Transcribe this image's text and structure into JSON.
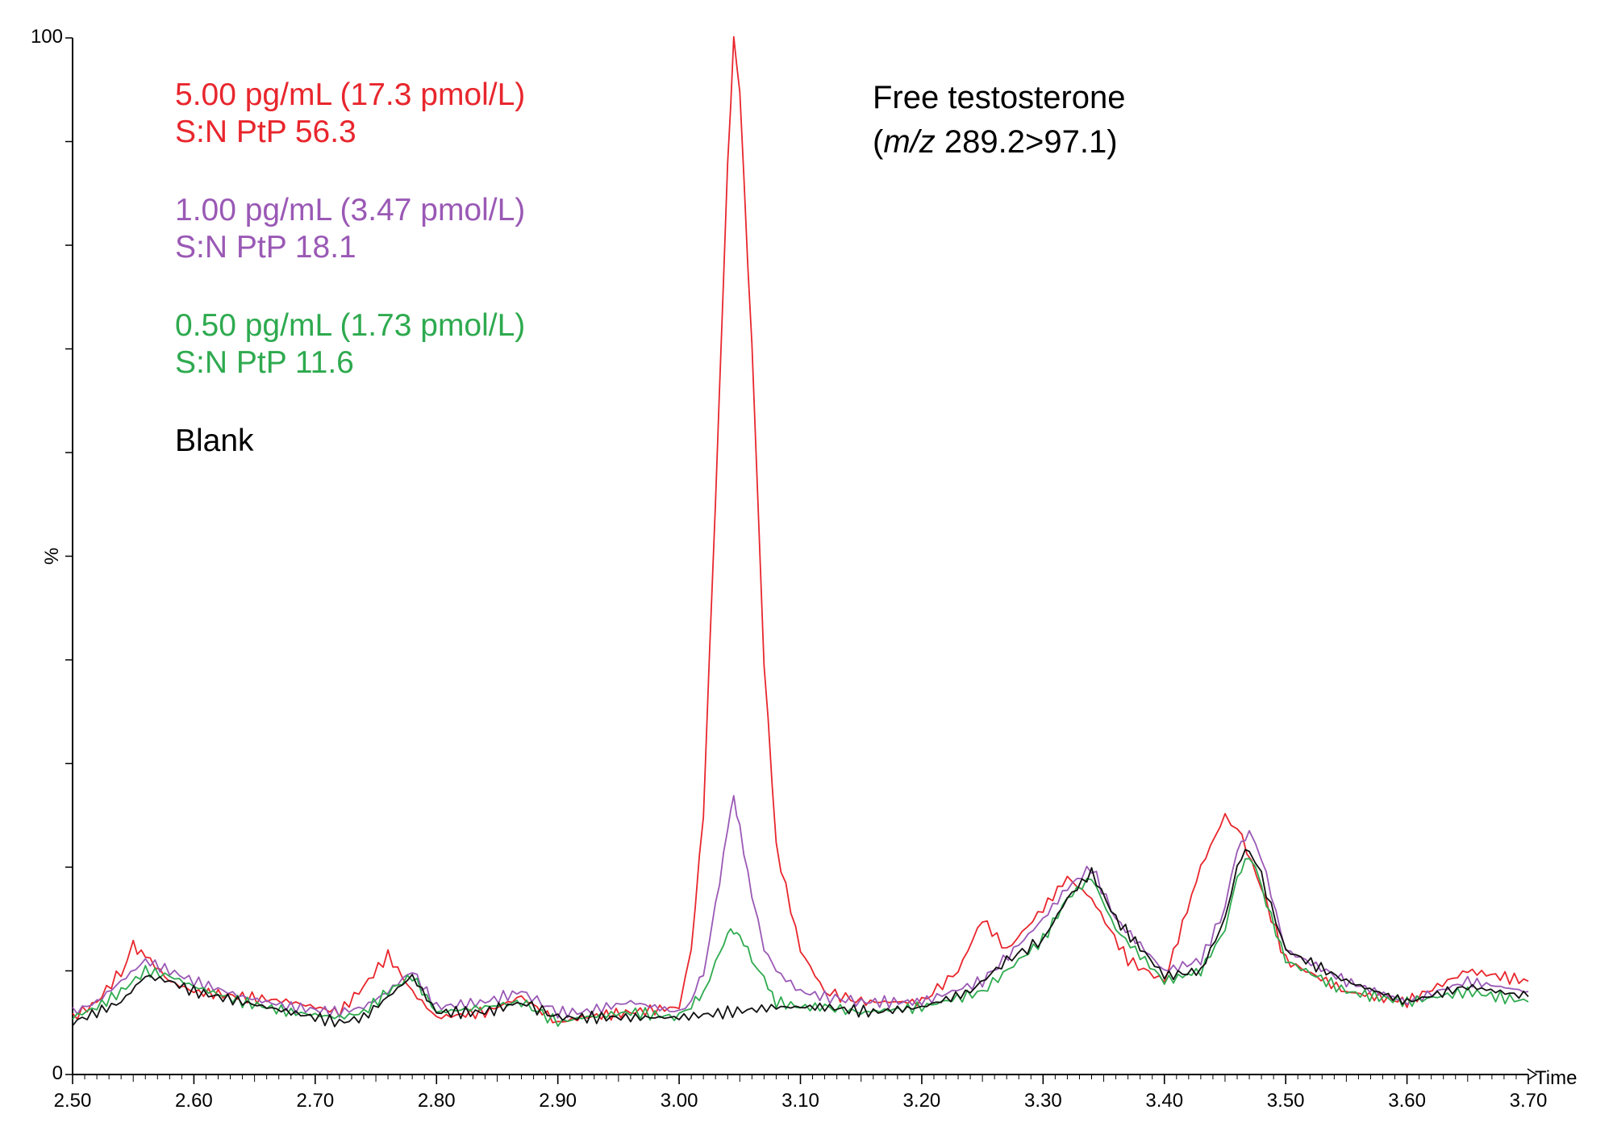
{
  "chart_data": {
    "type": "line",
    "title": "Free testosterone",
    "subtitle_prefix": "(",
    "subtitle_italic": "m/z",
    "subtitle_rest": " 289.2>97.1)",
    "xlabel": "Time",
    "ylabel": "%",
    "xlim": [
      2.5,
      3.7
    ],
    "ylim": [
      0,
      100
    ],
    "y_tick_labels": [
      "0",
      "100"
    ],
    "x_tick_labels": [
      "2.50",
      "2.60",
      "2.70",
      "2.80",
      "2.90",
      "3.00",
      "3.10",
      "3.20",
      "3.30",
      "3.40",
      "3.50",
      "3.60",
      "3.70"
    ],
    "grid": false,
    "annotations": [
      {
        "line1": "5.00 pg/mL (17.3 pmol/L)",
        "line2": "S:N PtP 56.3",
        "color": "#e8262d"
      },
      {
        "line1": "1.00 pg/mL (3.47 pmol/L)",
        "line2": "S:N PtP 18.1",
        "color": "#9a59b5"
      },
      {
        "line1": "0.50 pg/mL (1.73 pmol/L)",
        "line2": "S:N PtP 11.6",
        "color": "#2eaa4f"
      },
      {
        "line1": "Blank",
        "line2": "",
        "color": "#000000"
      }
    ],
    "series": [
      {
        "name": "5.00 pg/mL",
        "color": "#e8262d",
        "x": [
          2.5,
          2.52,
          2.54,
          2.55,
          2.56,
          2.58,
          2.6,
          2.64,
          2.68,
          2.72,
          2.74,
          2.76,
          2.78,
          2.8,
          2.84,
          2.87,
          2.9,
          2.92,
          2.96,
          3.0,
          3.01,
          3.02,
          3.03,
          3.04,
          3.045,
          3.05,
          3.06,
          3.07,
          3.08,
          3.1,
          3.12,
          3.15,
          3.2,
          3.23,
          3.25,
          3.27,
          3.3,
          3.32,
          3.34,
          3.37,
          3.4,
          3.43,
          3.45,
          3.46,
          3.48,
          3.5,
          3.55,
          3.6,
          3.65,
          3.7
        ],
        "y": [
          5.5,
          7,
          10,
          12.5,
          11.5,
          9,
          8,
          7.5,
          7,
          6,
          8.5,
          11.5,
          8,
          5.5,
          6,
          7.5,
          5,
          5.5,
          6,
          6.5,
          12,
          25,
          55,
          88,
          100,
          95,
          70,
          40,
          22,
          12,
          8,
          7,
          7,
          10,
          15,
          12,
          16,
          19,
          17,
          11,
          9,
          20,
          25,
          24,
          18,
          11,
          8,
          7,
          10,
          9
        ]
      },
      {
        "name": "1.00 pg/mL",
        "color": "#9a59b5",
        "x": [
          2.5,
          2.52,
          2.54,
          2.56,
          2.58,
          2.6,
          2.64,
          2.68,
          2.72,
          2.74,
          2.76,
          2.78,
          2.8,
          2.84,
          2.87,
          2.9,
          2.92,
          2.96,
          3.0,
          3.01,
          3.02,
          3.03,
          3.04,
          3.045,
          3.05,
          3.06,
          3.07,
          3.08,
          3.1,
          3.12,
          3.15,
          3.2,
          3.25,
          3.28,
          3.3,
          3.32,
          3.34,
          3.36,
          3.4,
          3.43,
          3.45,
          3.46,
          3.47,
          3.48,
          3.5,
          3.55,
          3.6,
          3.65,
          3.7
        ],
        "y": [
          6,
          7,
          9,
          11,
          10,
          9,
          7.5,
          6.5,
          6,
          6.5,
          8,
          10,
          6.5,
          7,
          8,
          6,
          6,
          7,
          6,
          7,
          10,
          16,
          24,
          27,
          24,
          17,
          12,
          10,
          8,
          7.5,
          7,
          7,
          9,
          12.5,
          15,
          18,
          20,
          15,
          10,
          11,
          16,
          22,
          23,
          21,
          12,
          9,
          7,
          9,
          8
        ]
      },
      {
        "name": "0.50 pg/mL",
        "color": "#2eaa4f",
        "x": [
          2.5,
          2.52,
          2.54,
          2.56,
          2.58,
          2.6,
          2.64,
          2.68,
          2.72,
          2.74,
          2.76,
          2.78,
          2.8,
          2.84,
          2.87,
          2.9,
          2.92,
          2.96,
          3.0,
          3.01,
          3.02,
          3.03,
          3.04,
          3.045,
          3.05,
          3.06,
          3.07,
          3.08,
          3.1,
          3.12,
          3.15,
          3.2,
          3.25,
          3.28,
          3.3,
          3.32,
          3.34,
          3.36,
          3.4,
          3.43,
          3.45,
          3.46,
          3.47,
          3.48,
          3.5,
          3.55,
          3.6,
          3.65,
          3.7
        ],
        "y": [
          5.5,
          6.5,
          8,
          10,
          9.5,
          8.5,
          7,
          6,
          5.5,
          6,
          8,
          9.5,
          6,
          6.5,
          7,
          5,
          5.5,
          6,
          5.5,
          6.5,
          8,
          11,
          13.5,
          14,
          13.5,
          11,
          9,
          7,
          6.5,
          6.5,
          6,
          6.5,
          8,
          11,
          13,
          17,
          19,
          14,
          9,
          10,
          14,
          19,
          21,
          18,
          11,
          8,
          7,
          8,
          7
        ]
      },
      {
        "name": "Blank",
        "color": "#111111",
        "x": [
          2.5,
          2.52,
          2.54,
          2.56,
          2.58,
          2.6,
          2.64,
          2.68,
          2.72,
          2.74,
          2.76,
          2.78,
          2.8,
          2.84,
          2.87,
          2.9,
          2.92,
          2.96,
          3.0,
          3.04,
          3.08,
          3.12,
          3.16,
          3.2,
          3.24,
          3.27,
          3.3,
          3.32,
          3.34,
          3.36,
          3.4,
          3.43,
          3.45,
          3.46,
          3.47,
          3.48,
          3.5,
          3.55,
          3.6,
          3.65,
          3.7
        ],
        "y": [
          5,
          6,
          7,
          9.5,
          9,
          8,
          7,
          6,
          5,
          5.5,
          7.5,
          9.5,
          6,
          6,
          7,
          5.5,
          5.5,
          5.5,
          5.5,
          6,
          6.5,
          6.5,
          6,
          6.5,
          8,
          11,
          13,
          17,
          19.5,
          15,
          9.5,
          10,
          15,
          20,
          22,
          19,
          12,
          9,
          7,
          8.5,
          7.5
        ]
      }
    ]
  }
}
